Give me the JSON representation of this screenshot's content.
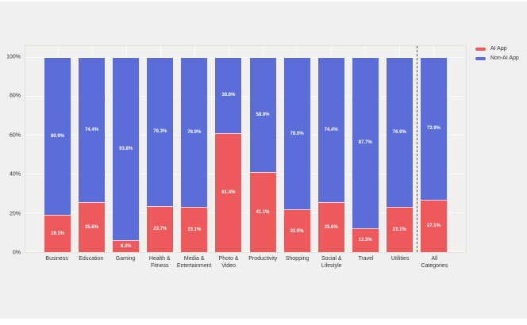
{
  "colors": {
    "page_background": "#ffffff",
    "panel_background": "#f1f0ee",
    "plot_border": "#e2e0dc",
    "gridline": "#fbfbf9",
    "separator_line": "#4d4d4d",
    "axis_text": "#333333",
    "bar_label_text": "#ffffff",
    "ai_app": "#ee5a5c",
    "non_ai_app": "#5a6dd8"
  },
  "chart_data": {
    "type": "bar",
    "stacked": true,
    "orientation": "vertical",
    "title": "",
    "xlabel": "",
    "ylabel": "",
    "categories": [
      "Business",
      "Education",
      "Gaming",
      "Health & Fitness",
      "Media & Entertainment",
      "Photo & Video",
      "Productivity",
      "Shopping",
      "Social & Lifestyle",
      "Travel",
      "Utilities",
      "All Categories"
    ],
    "category_labels": [
      "Business",
      "Education",
      "Gaming",
      "Health &\nFitness",
      "Media &\nEntertainment",
      "Photo &\nVideo",
      "Productivity",
      "Shopping",
      "Social &\nLifestyle",
      "Travel",
      "Utilities",
      "All\nCategories"
    ],
    "series": [
      {
        "name": "AI App",
        "color": "#ee5a5c",
        "values": [
          19.1,
          25.6,
          6.2,
          23.7,
          23.1,
          61.4,
          41.1,
          22.0,
          25.6,
          12.3,
          23.1,
          27.1
        ]
      },
      {
        "name": "Non-AI App",
        "color": "#5a6dd8",
        "values": [
          80.9,
          74.4,
          93.8,
          76.3,
          76.9,
          38.6,
          58.9,
          78.0,
          74.4,
          87.7,
          76.9,
          72.9
        ]
      }
    ],
    "value_label_suffix": "%",
    "ylim": [
      0,
      100
    ],
    "y_ticks": [
      0,
      20,
      40,
      60,
      80,
      100
    ],
    "y_tick_labels": [
      "0%",
      "20%",
      "40%",
      "60%",
      "80%",
      "100%"
    ],
    "grid": true,
    "legend_position": "top-right",
    "separator_before_category_index": 11
  },
  "legend": {
    "items": [
      {
        "label": "AI App",
        "color": "#ee5a5c"
      },
      {
        "label": "Non-AI App",
        "color": "#5a6dd8"
      }
    ]
  }
}
